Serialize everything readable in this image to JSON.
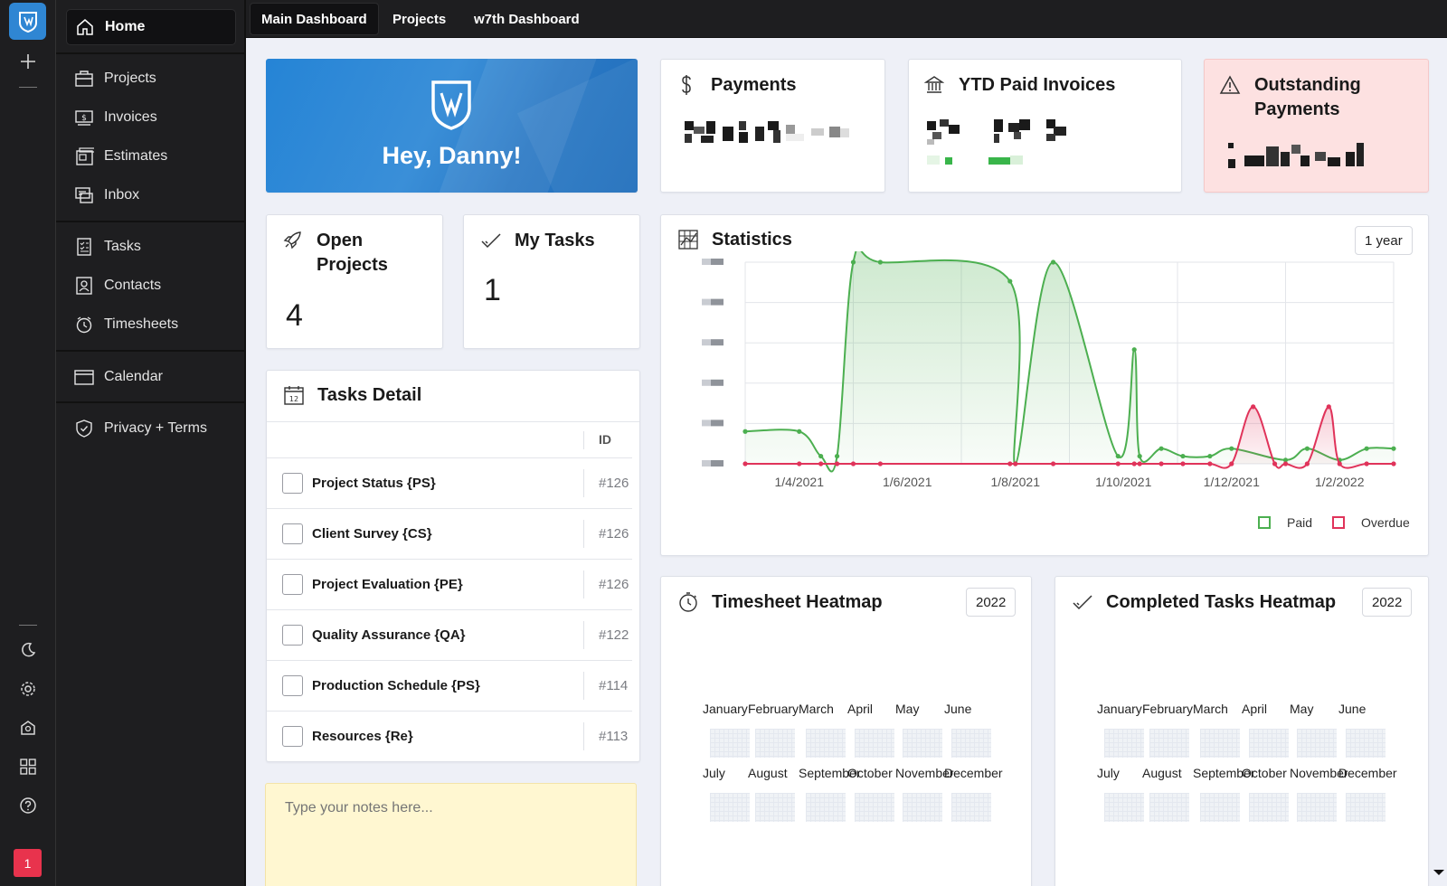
{
  "rail": {
    "notification_count": "1"
  },
  "nav": {
    "home": "Home",
    "items": [
      {
        "label": "Projects",
        "icon": "projects-icon"
      },
      {
        "label": "Invoices",
        "icon": "invoice-icon"
      },
      {
        "label": "Estimates",
        "icon": "estimates-icon"
      },
      {
        "label": "Inbox",
        "icon": "inbox-icon"
      },
      {
        "label": "Tasks",
        "icon": "tasks-icon"
      },
      {
        "label": "Contacts",
        "icon": "contacts-icon"
      },
      {
        "label": "Timesheets",
        "icon": "timer-icon"
      },
      {
        "label": "Calendar",
        "icon": "calendar-icon"
      },
      {
        "label": "Privacy + Terms",
        "icon": "shield-check-icon"
      }
    ]
  },
  "tabs": [
    {
      "label": "Main Dashboard",
      "active": true
    },
    {
      "label": "Projects",
      "active": false
    },
    {
      "label": "w7th Dashboard",
      "active": false
    }
  ],
  "hero": {
    "greeting": "Hey, Danny!"
  },
  "payments": {
    "title": "Payments"
  },
  "ytd": {
    "title": "YTD Paid Invoices"
  },
  "outstanding": {
    "title_line1": "Outstanding",
    "title_line2": "Payments"
  },
  "open_projects": {
    "title_line1": "Open",
    "title_line2": "Projects",
    "count": "4"
  },
  "my_tasks": {
    "title": "My Tasks",
    "count": "1"
  },
  "tasks_detail": {
    "title": "Tasks Detail",
    "id_header": "ID",
    "rows": [
      {
        "name": "Project Status {PS}",
        "id": "#126"
      },
      {
        "name": "Client Survey {CS}",
        "id": "#126"
      },
      {
        "name": "Project Evaluation {PE}",
        "id": "#126"
      },
      {
        "name": "Quality Assurance {QA}",
        "id": "#122"
      },
      {
        "name": "Production Schedule {PS}",
        "id": "#114"
      },
      {
        "name": "Resources {Re}",
        "id": "#113"
      }
    ]
  },
  "notes": {
    "placeholder": "Type your notes here..."
  },
  "statistics": {
    "title": "Statistics",
    "range": "1 year",
    "legend": {
      "paid": "Paid",
      "overdue": "Overdue"
    }
  },
  "colors": {
    "paid": "#4caf50",
    "overdue": "#e0335a",
    "accent": "#2f86d3",
    "outstanding_bg": "#fde1e1"
  },
  "chart_data": {
    "type": "area",
    "title": "Statistics",
    "x_tick_labels": [
      "1/4/2021",
      "1/6/2021",
      "1/8/2021",
      "1/10/2021",
      "1/12/2021",
      "1/2/2022"
    ],
    "y_tick_labels_obscured": true,
    "ylim": [
      0,
      5.3
    ],
    "series": [
      {
        "name": "Paid",
        "x": [
          0,
          1,
          1.4,
          1.7,
          2,
          2.5,
          4.9,
          5,
          5.7,
          6.9,
          7.2,
          7.3,
          7.7,
          8.1,
          8.6,
          9,
          10,
          10.4,
          11,
          11.5,
          12
        ],
        "y": [
          0.85,
          0.85,
          0.2,
          0.2,
          5.3,
          5.3,
          4.8,
          0,
          5.3,
          0.2,
          3.0,
          0.2,
          0.4,
          0.2,
          0.2,
          0.4,
          0.1,
          0.4,
          0.1,
          0.4,
          0.4
        ]
      },
      {
        "name": "Overdue",
        "x": [
          0,
          1,
          1.4,
          1.7,
          2,
          2.5,
          4.9,
          5,
          5.7,
          6.9,
          7.2,
          7.3,
          7.7,
          8.1,
          8.6,
          9,
          9.4,
          9.8,
          10,
          10.4,
          10.8,
          11,
          11.5,
          12
        ],
        "y": [
          0,
          0,
          0,
          0,
          0,
          0,
          0,
          0,
          0,
          0,
          0,
          0,
          0,
          0,
          0,
          0,
          1.5,
          0,
          0,
          0,
          1.5,
          0,
          0,
          0
        ]
      }
    ],
    "grid": true,
    "legend_position": "bottom-right"
  },
  "timesheet_heatmap": {
    "title": "Timesheet Heatmap",
    "year": "2022",
    "months_row1": [
      "January",
      "February",
      "March",
      "April",
      "May",
      "June"
    ],
    "months_row2": [
      "July",
      "August",
      "September",
      "October",
      "November",
      "December"
    ]
  },
  "completed_heatmap": {
    "title": "Completed Tasks Heatmap",
    "year": "2022",
    "months_row1": [
      "January",
      "February",
      "March",
      "April",
      "May",
      "June"
    ],
    "months_row2": [
      "July",
      "August",
      "September",
      "October",
      "November",
      "December"
    ]
  }
}
